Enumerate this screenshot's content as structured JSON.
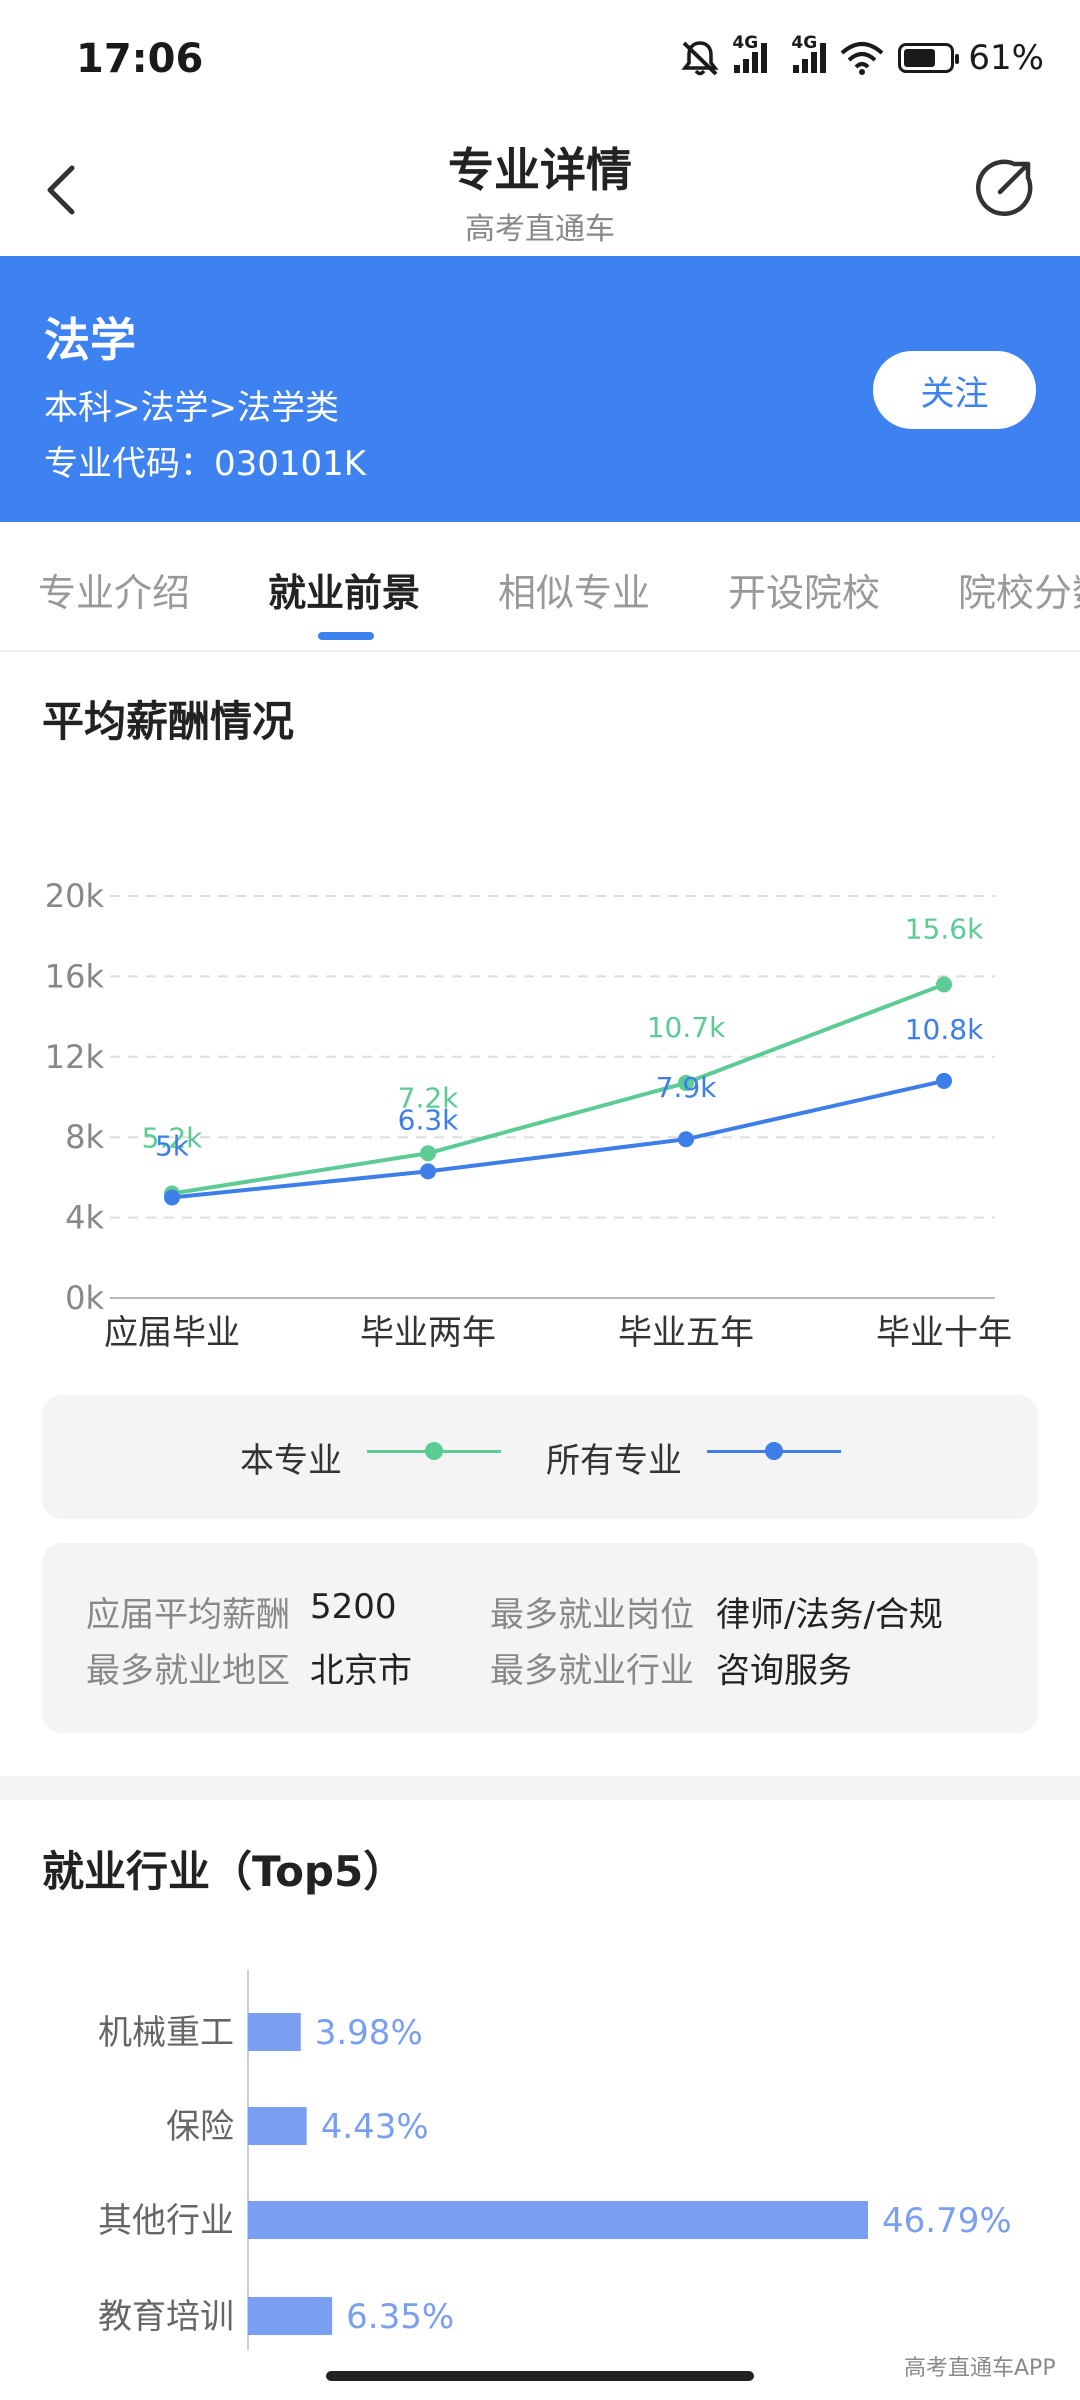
{
  "status_bar": {
    "time": "17:06",
    "network_1": "4G",
    "network_2": "4G",
    "battery": "61%",
    "battery_level": 0.61
  },
  "header": {
    "title": "专业详情",
    "subtitle": "高考直通车"
  },
  "major": {
    "name": "法学",
    "path": "本科>法学>法学类",
    "code": "专业代码：030101K",
    "follow_label": "关注"
  },
  "tabs": [
    {
      "label": "专业介绍",
      "active": false
    },
    {
      "label": "就业前景",
      "active": true
    },
    {
      "label": "相似专业",
      "active": false
    },
    {
      "label": "开设院校",
      "active": false
    },
    {
      "label": "院校分数",
      "active": false
    }
  ],
  "salary_section": {
    "title": "平均薪酬情况"
  },
  "chart_data": [
    {
      "type": "line",
      "title": "",
      "x": [
        "应届毕业",
        "毕业两年",
        "毕业五年",
        "毕业十年"
      ],
      "ylim": [
        0,
        20
      ],
      "yticks": [
        "0k",
        "4k",
        "8k",
        "12k",
        "16k",
        "20k"
      ],
      "grid": true,
      "legend": "bottom",
      "series": [
        {
          "name": "本专业",
          "values": [
            5.2,
            7.2,
            10.7,
            15.6
          ],
          "labels": [
            "5.2k",
            "7.2k",
            "10.7k",
            "15.6k"
          ],
          "color": "#5ccb94"
        },
        {
          "name": "所有专业",
          "values": [
            5.0,
            6.3,
            7.9,
            10.8
          ],
          "labels": [
            "5k",
            "6.3k",
            "7.9k",
            "10.8k"
          ],
          "color": "#3d7ee8"
        }
      ]
    },
    {
      "type": "bar",
      "orientation": "horizontal",
      "title": "",
      "categories": [
        "机械重工",
        "保险",
        "其他行业",
        "教育培训"
      ],
      "values": [
        3.98,
        4.43,
        46.79,
        6.35
      ],
      "labels": [
        "3.98%",
        "4.43%",
        "46.79%",
        "6.35%"
      ],
      "xlim": [
        0,
        50
      ],
      "color": "#7a9ff0"
    }
  ],
  "legend": {
    "this_major": "本专业",
    "all_majors": "所有专业",
    "this_color": "#5ccb94",
    "all_color": "#3d7ee8"
  },
  "stats": {
    "avg_salary_label": "应届平均薪酬",
    "avg_salary_value": "5200",
    "top_region_label": "最多就业地区",
    "top_region_value": "北京市",
    "top_position_label": "最多就业岗位",
    "top_position_value": "律师/法务/合规",
    "top_industry_label": "最多就业行业",
    "top_industry_value": "咨询服务"
  },
  "industry_section": {
    "title": "就业行业（Top5）"
  },
  "watermark": "高考直通车APP"
}
